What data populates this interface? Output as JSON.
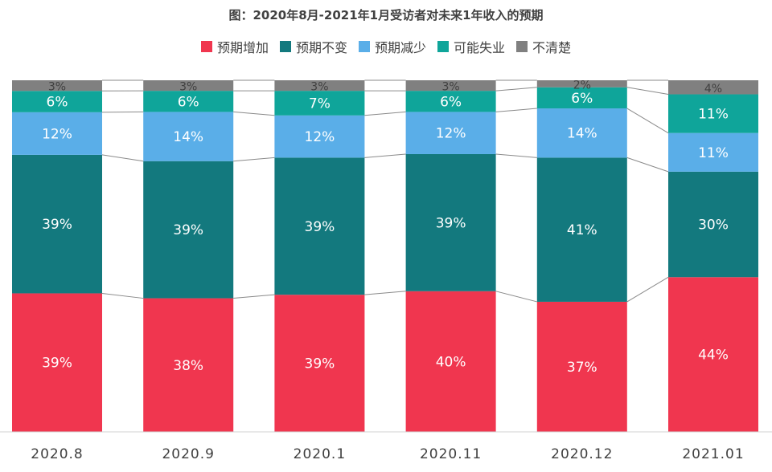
{
  "chart_data": {
    "type": "bar",
    "stacked": true,
    "normalized": true,
    "title": "图：2020年8月-2021年1月受访者对未来1年收入的预期",
    "categories": [
      "2020.8",
      "2020.9",
      "2020.1",
      "2020.11",
      "2020.12",
      "2021.01"
    ],
    "series": [
      {
        "name": "预期增加",
        "color": "#f0364f",
        "values": [
          39,
          38,
          39,
          40,
          37,
          44
        ],
        "labels": [
          "39%",
          "38%",
          "39%",
          "40%",
          "37%",
          "44%"
        ]
      },
      {
        "name": "预期不变",
        "color": "#13797e",
        "values": [
          39,
          39,
          39,
          39,
          41,
          30
        ],
        "labels": [
          "39%",
          "39%",
          "39%",
          "39%",
          "41%",
          "30%"
        ]
      },
      {
        "name": "预期减少",
        "color": "#5aaee8",
        "values": [
          12,
          14,
          12,
          12,
          14,
          11
        ],
        "labels": [
          "12%",
          "14%",
          "12%",
          "12%",
          "14%",
          "11%"
        ]
      },
      {
        "name": "可能失业",
        "color": "#0fa59a",
        "values": [
          6,
          6,
          7,
          6,
          6,
          11
        ],
        "labels": [
          "6%",
          "6%",
          "7%",
          "6%",
          "6%",
          "11%"
        ]
      },
      {
        "name": "不清楚",
        "color": "#808080",
        "values": [
          3,
          3,
          3,
          3,
          2,
          4
        ],
        "labels": [
          "3%",
          "3%",
          "3%",
          "3%",
          "2%",
          "4%"
        ]
      }
    ],
    "legend_position": "top",
    "series_connector_lines": true,
    "grid": false
  }
}
